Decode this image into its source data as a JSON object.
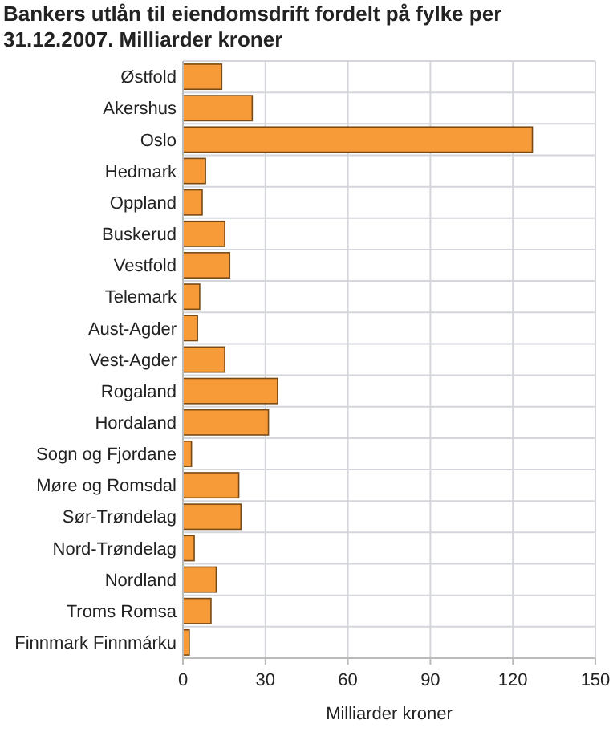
{
  "chart_data": {
    "type": "bar",
    "orientation": "horizontal",
    "title": "Bankers utlån til eiendomsdrift fordelt på fylke per 31.12.2007. Milliarder kroner",
    "xlabel": "Milliarder kroner",
    "categories": [
      "Østfold",
      "Akershus",
      "Oslo",
      "Hedmark",
      "Oppland",
      "Buskerud",
      "Vestfold",
      "Telemark",
      "Aust-Agder",
      "Vest-Agder",
      "Rogaland",
      "Hordaland",
      "Sogn og Fjordane",
      "Møre og Romsdal",
      "Sør-Trøndelag",
      "Nord-Trøndelag",
      "Nordland",
      "Troms Romsa",
      "Finnmark Finnmárku"
    ],
    "values": [
      14.1,
      25.2,
      127.1,
      8.2,
      7.0,
      15.2,
      17.0,
      6.1,
      5.3,
      15.2,
      34.4,
      31.1,
      3.1,
      20.3,
      21.1,
      4.1,
      12.1,
      10.2,
      2.3
    ],
    "color": "#f79a38",
    "xlim": [
      0,
      150
    ],
    "xticks": [
      0,
      30,
      60,
      90,
      120,
      150
    ],
    "grid": true
  }
}
